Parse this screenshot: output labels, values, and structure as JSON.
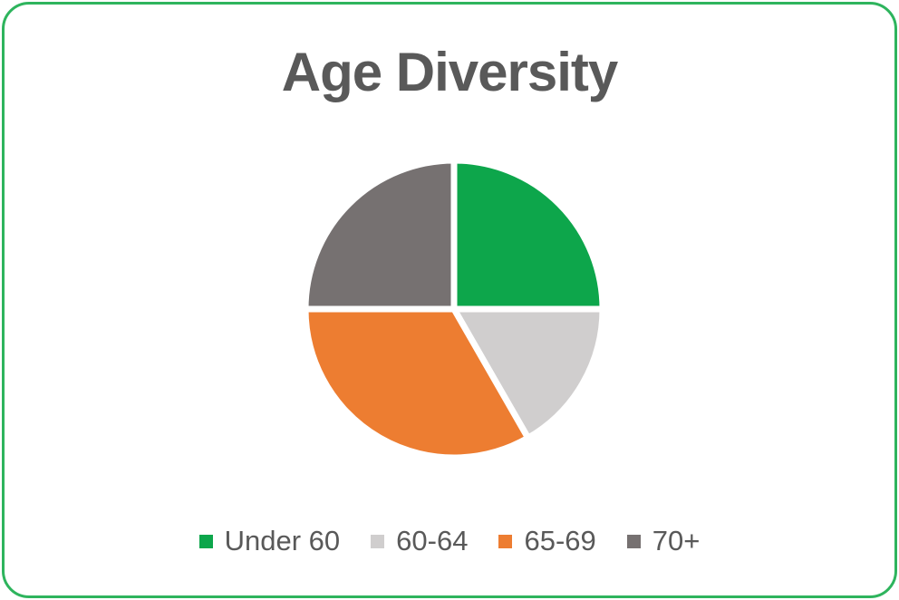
{
  "frame": {
    "border_color": "#2EB45D",
    "background_color": "#FFFFFF"
  },
  "text_color": "#595959",
  "chart_data": {
    "type": "pie",
    "title": "Age Diversity",
    "start_angle": 0,
    "slice_border_color": "#FFFFFF",
    "legend_position": "bottom",
    "segments": [
      {
        "label": "Under 60",
        "value": 25,
        "color": "#0DA64B"
      },
      {
        "label": "60-64",
        "value": 16.7,
        "color": "#D0CECE"
      },
      {
        "label": "65-69",
        "value": 33.3,
        "color": "#ED7D31"
      },
      {
        "label": "70+",
        "value": 25,
        "color": "#767171"
      }
    ]
  }
}
